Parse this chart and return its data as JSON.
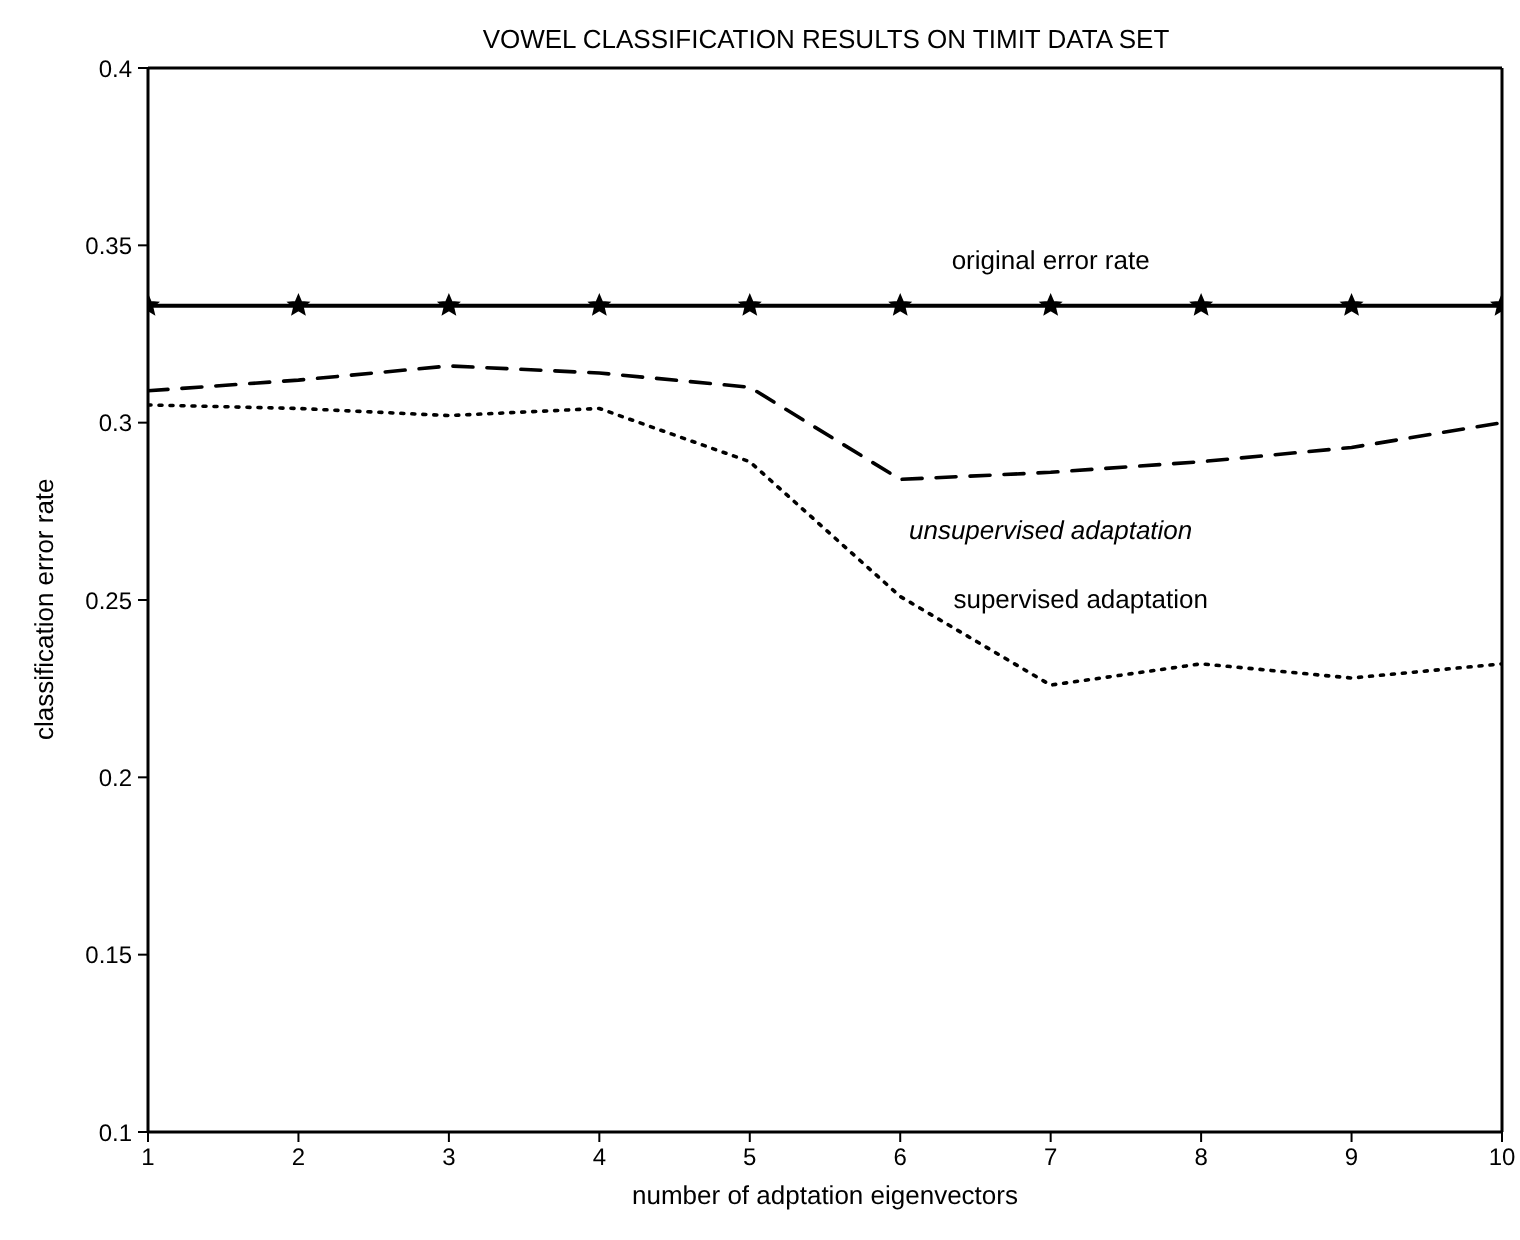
{
  "chart_data": {
    "type": "line",
    "title": "VOWEL CLASSIFICATION RESULTS ON TIMIT DATA SET",
    "xlabel": "number of adptation eigenvectors",
    "ylabel": "classification error rate",
    "x": [
      1,
      2,
      3,
      4,
      5,
      6,
      7,
      8,
      9,
      10
    ],
    "series": [
      {
        "name": "original error rate",
        "color": "#000000",
        "marker": "star",
        "line_style": "solid",
        "values": [
          0.333,
          0.333,
          0.333,
          0.333,
          0.333,
          0.333,
          0.333,
          0.333,
          0.333,
          0.333
        ]
      },
      {
        "name": "unsupervised adaptation",
        "color": "#000000",
        "marker": "none",
        "line_style": "dashed",
        "values": [
          0.309,
          0.312,
          0.316,
          0.314,
          0.31,
          0.284,
          0.286,
          0.289,
          0.293,
          0.3
        ]
      },
      {
        "name": "supervised adaptation",
        "color": "#000000",
        "marker": "none",
        "line_style": "dotted",
        "values": [
          0.305,
          0.304,
          0.302,
          0.304,
          0.289,
          0.251,
          0.226,
          0.232,
          0.228,
          0.232
        ]
      }
    ],
    "xlim": [
      1,
      10
    ],
    "xticks": [
      1,
      2,
      3,
      4,
      5,
      6,
      7,
      8,
      9,
      10
    ],
    "ylim": [
      0.1,
      0.4
    ],
    "yticks": [
      0.1,
      0.15,
      0.2,
      0.25,
      0.3,
      0.35,
      0.4
    ],
    "grid": false,
    "legend": false
  }
}
